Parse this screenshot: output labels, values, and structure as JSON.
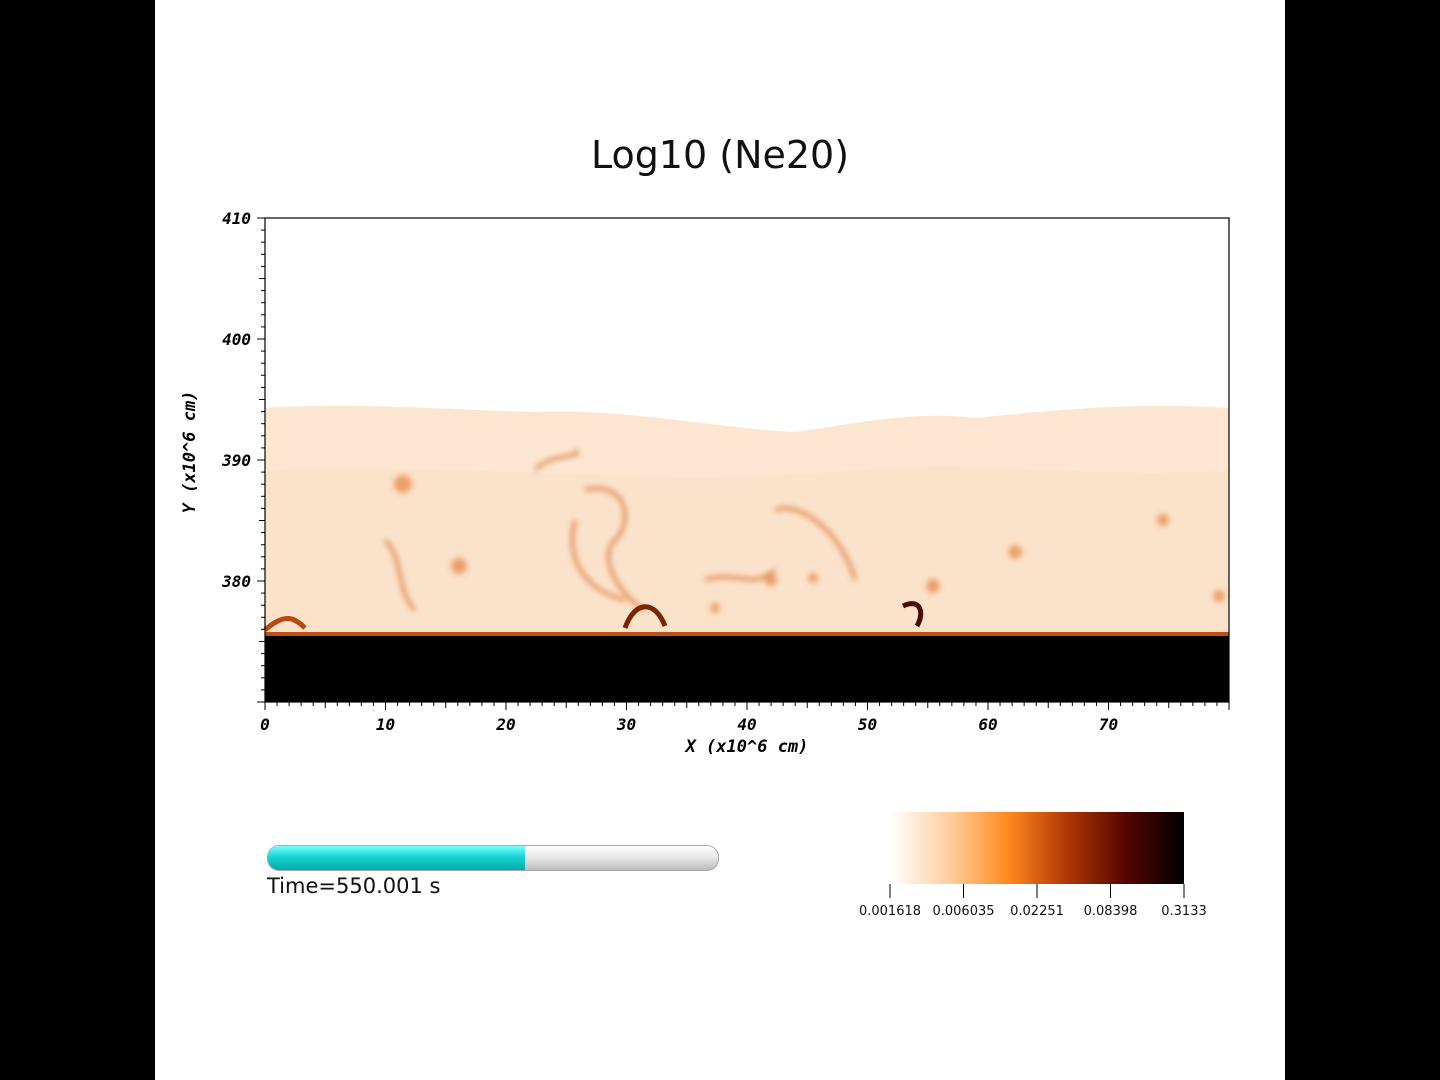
{
  "title": "Log10 (Ne20)",
  "plot": {
    "x_axis_label": "X (x10^6 cm)",
    "y_axis_label": "Y (x10^6 cm)",
    "x_ticks": [
      "0",
      "10",
      "20",
      "30",
      "40",
      "50",
      "60",
      "70"
    ],
    "y_ticks": [
      "380",
      "390",
      "400",
      "410"
    ],
    "x_range": [
      0,
      80
    ],
    "y_range": [
      370,
      410
    ]
  },
  "time": {
    "label": "Time=550.001 s",
    "progress_fraction": 0.57
  },
  "colorbar": {
    "tick_labels": [
      "0.001618",
      "0.006035",
      "0.02251",
      "0.08398",
      "0.3133"
    ],
    "colors": [
      "#ffffff",
      "#ffd2a8",
      "#ff8a1e",
      "#b43a06",
      "#5c0600",
      "#000000"
    ]
  }
}
